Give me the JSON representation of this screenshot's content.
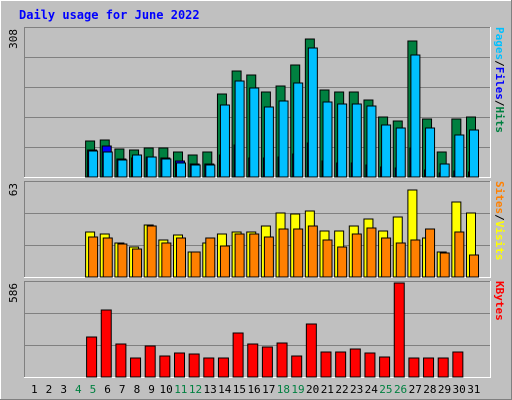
{
  "title": "Daily usage for June 2022",
  "colors": {
    "background": "#c0c0c0",
    "title": "#0000ff",
    "hits": "#008040",
    "files": "#0000ff",
    "pages": "#00c0ff",
    "visits": "#ffff00",
    "sites": "#ff8000",
    "kbytes": "#ff0000",
    "axis_label": "#000000",
    "weekend_label": "#008040",
    "grid": "#808080"
  },
  "chart_data": [
    {
      "type": "bar",
      "panel": "top",
      "ymax_label": "308",
      "ylim": [
        0,
        308
      ],
      "right_label_parts": [
        {
          "text": "Pages",
          "color": "#00c0ff"
        },
        {
          "text": "/",
          "color": "#000000"
        },
        {
          "text": "Files",
          "color": "#0000ff"
        },
        {
          "text": "/",
          "color": "#000000"
        },
        {
          "text": "Hits",
          "color": "#008040"
        }
      ],
      "categories": [
        "1",
        "2",
        "3",
        "4",
        "5",
        "6",
        "7",
        "8",
        "9",
        "10",
        "11",
        "12",
        "13",
        "14",
        "15",
        "16",
        "17",
        "18",
        "19",
        "20",
        "21",
        "22",
        "23",
        "24",
        "25",
        "26",
        "27",
        "28",
        "29",
        "30",
        "31"
      ],
      "series": [
        {
          "name": "Hits",
          "values": [
            0,
            0,
            0,
            0,
            74,
            78,
            58,
            57,
            60,
            60,
            53,
            46,
            52,
            173,
            220,
            213,
            176,
            189,
            233,
            288,
            182,
            177,
            177,
            161,
            124,
            117,
            284,
            121,
            52,
            120,
            124
          ]
        },
        {
          "name": "Files",
          "values": [
            0,
            0,
            0,
            0,
            56,
            64,
            38,
            40,
            41,
            39,
            34,
            27,
            28,
            45,
            67,
            40,
            40,
            42,
            47,
            70,
            34,
            30,
            30,
            25,
            20,
            18,
            60,
            14,
            8,
            12,
            10
          ]
        },
        {
          "name": "Pages",
          "values": [
            0,
            0,
            0,
            0,
            54,
            52,
            36,
            46,
            41,
            38,
            29,
            24,
            24,
            150,
            200,
            186,
            146,
            159,
            196,
            268,
            156,
            152,
            152,
            148,
            108,
            103,
            254,
            101,
            27,
            88,
            97
          ]
        }
      ]
    },
    {
      "type": "bar",
      "panel": "middle",
      "ymax_label": "63",
      "ylim": [
        0,
        63
      ],
      "right_label_parts": [
        {
          "text": "Sites",
          "color": "#ff8000"
        },
        {
          "text": "/",
          "color": "#000000"
        },
        {
          "text": "Visits",
          "color": "#ffff00"
        }
      ],
      "categories": [
        "1",
        "2",
        "3",
        "4",
        "5",
        "6",
        "7",
        "8",
        "9",
        "10",
        "11",
        "12",
        "13",
        "14",
        "15",
        "16",
        "17",
        "18",
        "19",
        "20",
        "21",
        "22",
        "23",
        "24",
        "25",
        "26",
        "27",
        "28",
        "29",
        "30",
        "31"
      ],
      "series": [
        {
          "name": "Visits",
          "values": [
            0,
            0,
            0,
            0,
            30,
            29,
            23,
            20,
            35,
            25,
            28,
            17,
            23,
            29,
            30,
            30,
            34,
            43,
            42,
            44,
            31,
            31,
            34,
            39,
            31,
            40,
            58,
            26,
            17,
            50,
            43
          ]
        },
        {
          "name": "Sites",
          "values": [
            0,
            0,
            0,
            0,
            27,
            26,
            22,
            19,
            34,
            23,
            26,
            17,
            26,
            21,
            29,
            29,
            27,
            32,
            32,
            34,
            25,
            20,
            29,
            33,
            26,
            23,
            25,
            32,
            16,
            30,
            15
          ]
        }
      ]
    },
    {
      "type": "bar",
      "panel": "bottom",
      "ymax_label": "586",
      "ylim": [
        0,
        586
      ],
      "right_label_parts": [
        {
          "text": "KBytes",
          "color": "#ff0000"
        }
      ],
      "categories": [
        "1",
        "2",
        "3",
        "4",
        "5",
        "6",
        "7",
        "8",
        "9",
        "10",
        "11",
        "12",
        "13",
        "14",
        "15",
        "16",
        "17",
        "18",
        "19",
        "20",
        "21",
        "22",
        "23",
        "24",
        "25",
        "26",
        "27",
        "28",
        "29",
        "30",
        "31"
      ],
      "series": [
        {
          "name": "KBytes",
          "values": [
            0,
            0,
            0,
            0,
            250,
            420,
            208,
            120,
            196,
            133,
            150,
            141,
            116,
            116,
            277,
            206,
            184,
            214,
            133,
            328,
            155,
            155,
            177,
            148,
            122,
            586,
            116,
            116,
            116,
            155,
            0
          ]
        }
      ]
    }
  ],
  "x_labels": [
    {
      "text": "1",
      "weekend": false
    },
    {
      "text": "2",
      "weekend": false
    },
    {
      "text": "3",
      "weekend": false
    },
    {
      "text": "4",
      "weekend": true
    },
    {
      "text": "5",
      "weekend": true
    },
    {
      "text": "6",
      "weekend": false
    },
    {
      "text": "7",
      "weekend": false
    },
    {
      "text": "8",
      "weekend": false
    },
    {
      "text": "9",
      "weekend": false
    },
    {
      "text": "10",
      "weekend": false
    },
    {
      "text": "11",
      "weekend": true
    },
    {
      "text": "12",
      "weekend": true
    },
    {
      "text": "13",
      "weekend": false
    },
    {
      "text": "14",
      "weekend": false
    },
    {
      "text": "15",
      "weekend": false
    },
    {
      "text": "16",
      "weekend": false
    },
    {
      "text": "17",
      "weekend": false
    },
    {
      "text": "18",
      "weekend": true
    },
    {
      "text": "19",
      "weekend": true
    },
    {
      "text": "20",
      "weekend": false
    },
    {
      "text": "21",
      "weekend": false
    },
    {
      "text": "22",
      "weekend": false
    },
    {
      "text": "23",
      "weekend": false
    },
    {
      "text": "24",
      "weekend": false
    },
    {
      "text": "25",
      "weekend": true
    },
    {
      "text": "26",
      "weekend": true
    },
    {
      "text": "27",
      "weekend": false
    },
    {
      "text": "28",
      "weekend": false
    },
    {
      "text": "29",
      "weekend": false
    },
    {
      "text": "30",
      "weekend": false
    },
    {
      "text": "31",
      "weekend": false
    }
  ]
}
